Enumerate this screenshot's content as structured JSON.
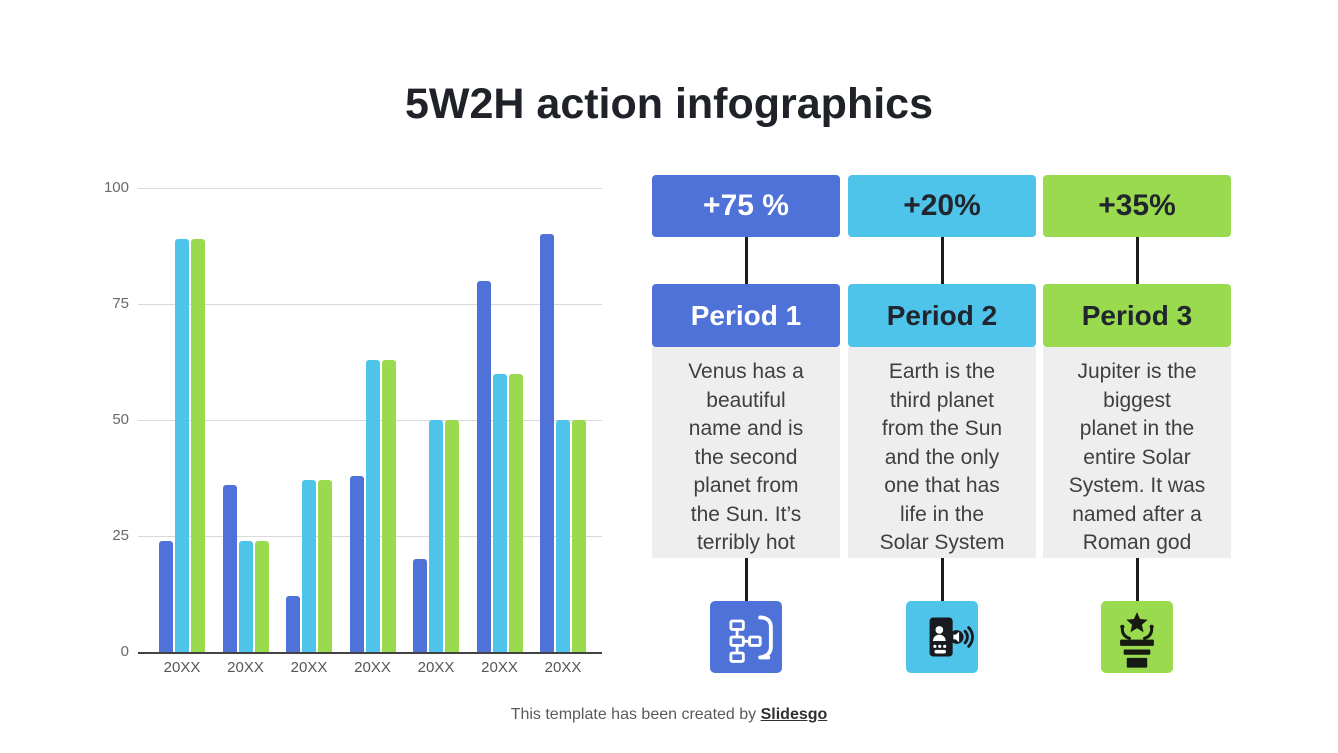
{
  "title": "5W2H action infographics",
  "footer": {
    "text": "This template has been created by ",
    "brand": "Slidesgo"
  },
  "colors": {
    "blue": "#4E72D8",
    "cyan": "#4FC4EB",
    "green": "#99DA4E",
    "gray_panel": "#EEEEEE",
    "dark_text": "#21262E",
    "connector": "#1B1B1B"
  },
  "chart_data": {
    "type": "bar",
    "categories": [
      "20XX",
      "20XX",
      "20XX",
      "20XX",
      "20XX",
      "20XX",
      "20XX"
    ],
    "series": [
      {
        "name": "series-blue",
        "color": "#4E72D8",
        "values": [
          24,
          36,
          12,
          38,
          20,
          80,
          90
        ]
      },
      {
        "name": "series-cyan",
        "color": "#4FC4EB",
        "values": [
          89,
          24,
          37,
          63,
          50,
          60,
          50
        ]
      },
      {
        "name": "series-green",
        "color": "#99DA4E",
        "values": [
          89,
          24,
          37,
          63,
          50,
          60,
          50
        ]
      }
    ],
    "title": "",
    "xlabel": "",
    "ylabel": "",
    "ylim": [
      0,
      100
    ],
    "yticks": [
      0,
      25,
      50,
      75,
      100
    ],
    "grid": true,
    "legend": "none"
  },
  "columns": [
    {
      "delta": "+75 %",
      "period": "Period 1",
      "description": "Venus has a\nbeautiful\nname and is\nthe second\nplanet from\nthe Sun. It’s\nterribly hot",
      "accent": "#4E72D8",
      "text_color": "#FFFFFF",
      "icon": "blueprint-flowchart-icon"
    },
    {
      "delta": "+20%",
      "period": "Period 2",
      "description": "Earth is the\nthird planet\nfrom the Sun\nand the only\none that has\nlife in the\nSolar System",
      "accent": "#4FC4EB",
      "text_color": "#21262E",
      "icon": "phone-broadcast-icon"
    },
    {
      "delta": "+35%",
      "period": "Period 3",
      "description": "Jupiter is the\nbiggest\nplanet in the\nentire Solar\nSystem. It was\nnamed after a\nRoman god",
      "accent": "#99DA4E",
      "text_color": "#21262E",
      "icon": "podium-star-icon"
    }
  ]
}
